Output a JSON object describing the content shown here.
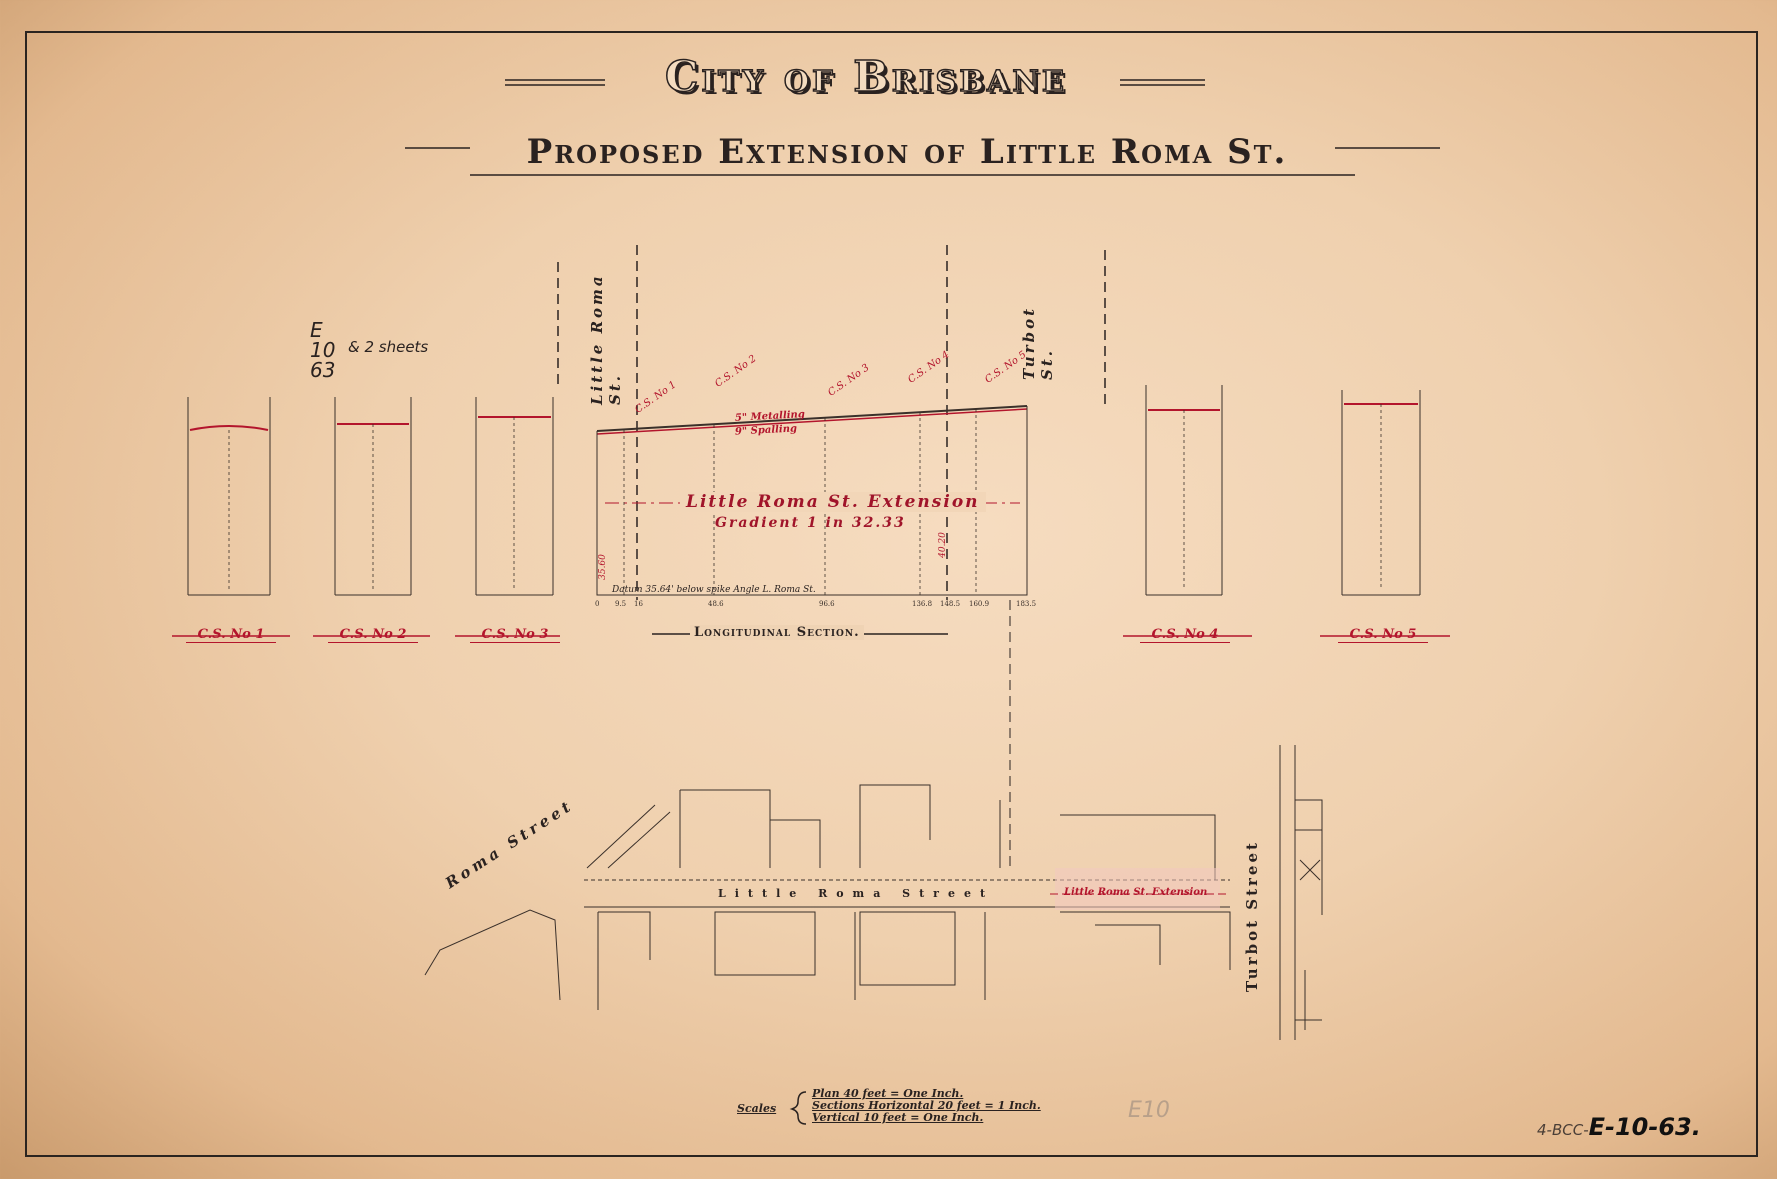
{
  "title": "City of Brisbane",
  "subtitle": "Proposed Extension of Little Roma St.",
  "colors": {
    "paper": "#efd0ae",
    "ink": "#2a2220",
    "red_ink": "#b3152c"
  },
  "longitudinal": {
    "street_left": "Little Roma St.",
    "street_right": "Turbot St.",
    "metalling": "5\" Metalling",
    "spalling": "9\" Spalling",
    "extension_label": "Little Roma St. Extension",
    "gradient": "Gradient 1 in 32.33",
    "datum": "Datum 35.64' below spike Angle L. Roma St.",
    "section_label": "Longitudinal Section.",
    "cs_tags": [
      "C.S. No 1",
      "C.S. No 2",
      "C.S. No 3",
      "C.S. No 4",
      "C.S. No 5"
    ],
    "chainages": [
      "0",
      "9.5",
      "16",
      "48.6",
      "96.6",
      "136.8",
      "148.5",
      "160.9",
      "183.5"
    ],
    "levels_red": [
      "35.60",
      "40.20"
    ]
  },
  "cross_sections": [
    {
      "label": "C.S. No 1"
    },
    {
      "label": "C.S. No 2"
    },
    {
      "label": "C.S. No 3"
    },
    {
      "label": "C.S. No 4"
    },
    {
      "label": "C.S. No 5"
    }
  ],
  "plan": {
    "roma_street": "Roma Street",
    "little_roma_street": "Little Roma Street",
    "turbot_street": "Turbot Street",
    "extension_label": "Little Roma St. Extension"
  },
  "scales": {
    "label": "Scales",
    "plan": "Plan 40 feet = One Inch.",
    "sections_horizontal": "Sections Horizontal 20 feet = 1 Inch.",
    "vertical": "Vertical 10 feet = One Inch."
  },
  "annotations": {
    "handwritten_ref": "E 10 63",
    "handwritten_note": "& 2 sheets",
    "catalogue_prefix": "4-BCC-",
    "catalogue_number": "E-10-63.",
    "pencil_mark": "E10"
  }
}
